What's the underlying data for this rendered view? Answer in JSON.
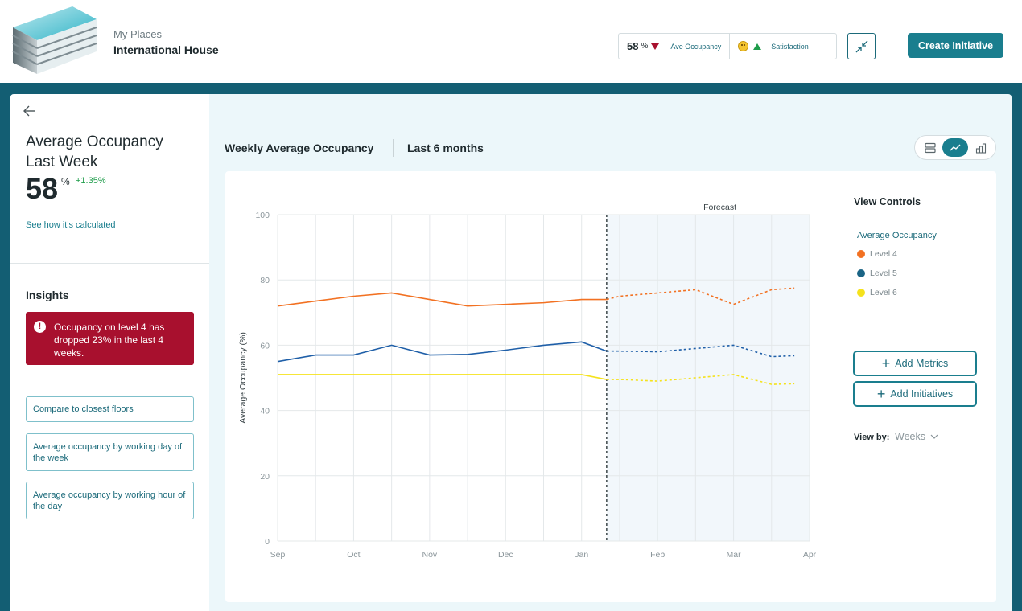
{
  "header": {
    "place_sub": "My Places",
    "place_name": "International House",
    "kpi_occupancy_value": "58",
    "kpi_occupancy_unit": "%",
    "kpi_occupancy_label": "Ave Occupancy",
    "kpi_satisfaction_label": "Satisfaction",
    "create_label": "Create Initiative"
  },
  "left": {
    "title": "Average Occupancy Last Week",
    "value": "58",
    "unit": "%",
    "delta": "+1.35%",
    "calc_link": "See how it's calculated",
    "insights_title": "Insights",
    "alert_icon": "!",
    "alert_text": "Occupancy on level 4 has dropped 23% in the last 4 weeks.",
    "insight_buttons": [
      "Compare to closest floors",
      "Average occupancy by working day of the week",
      "Average occupancy by working hour of the day"
    ]
  },
  "main": {
    "heading": "Weekly Average Occupancy",
    "range": "Last 6 months",
    "view_controls_title": "View Controls",
    "legend_title": "Average Occupancy",
    "add_metrics": "Add Metrics",
    "add_initiatives": "Add Initiatives",
    "view_by_label": "View by:",
    "view_by_value": "Weeks"
  },
  "colors": {
    "teal": "#1a7e8e",
    "alert": "#a8102e",
    "up": "#1e9c4a",
    "level4": "#f27122",
    "level5": "#1f5fa8",
    "level6": "#f5e21c"
  },
  "chart_data": {
    "type": "line",
    "ylabel": "Average Occupancy (%)",
    "xlabel": "",
    "ylim": [
      0,
      100
    ],
    "yticks": [
      0,
      20,
      40,
      60,
      80,
      100
    ],
    "xticks": [
      "Sep",
      "Oct",
      "Nov",
      "Dec",
      "Jan",
      "Feb",
      "Mar",
      "Apr"
    ],
    "forecast_label": "Forecast",
    "x": [
      0,
      0.5,
      1,
      1.5,
      2,
      2.5,
      3,
      3.5,
      4,
      4.33,
      4.5,
      5,
      5.5,
      6,
      6.5,
      6.8
    ],
    "forecast_start": 4.33,
    "grid": true,
    "series": [
      {
        "name": "Level 4",
        "color": "#f27122",
        "values": [
          72,
          73.5,
          75,
          76,
          74,
          72,
          72.5,
          73,
          74,
          74,
          75,
          76,
          77,
          72.5,
          77,
          77.5
        ]
      },
      {
        "name": "Level 5",
        "color": "#1f5fa8",
        "values": [
          55,
          57,
          57,
          60,
          57,
          57.2,
          58.5,
          60,
          61,
          58.2,
          58.2,
          58,
          59,
          60,
          56.5,
          56.8
        ]
      },
      {
        "name": "Level 6",
        "color": "#f5e21c",
        "values": [
          51,
          51,
          51,
          51,
          51,
          51,
          51,
          51,
          51,
          49.5,
          49.5,
          49,
          50,
          51,
          48,
          48.2
        ]
      }
    ]
  }
}
